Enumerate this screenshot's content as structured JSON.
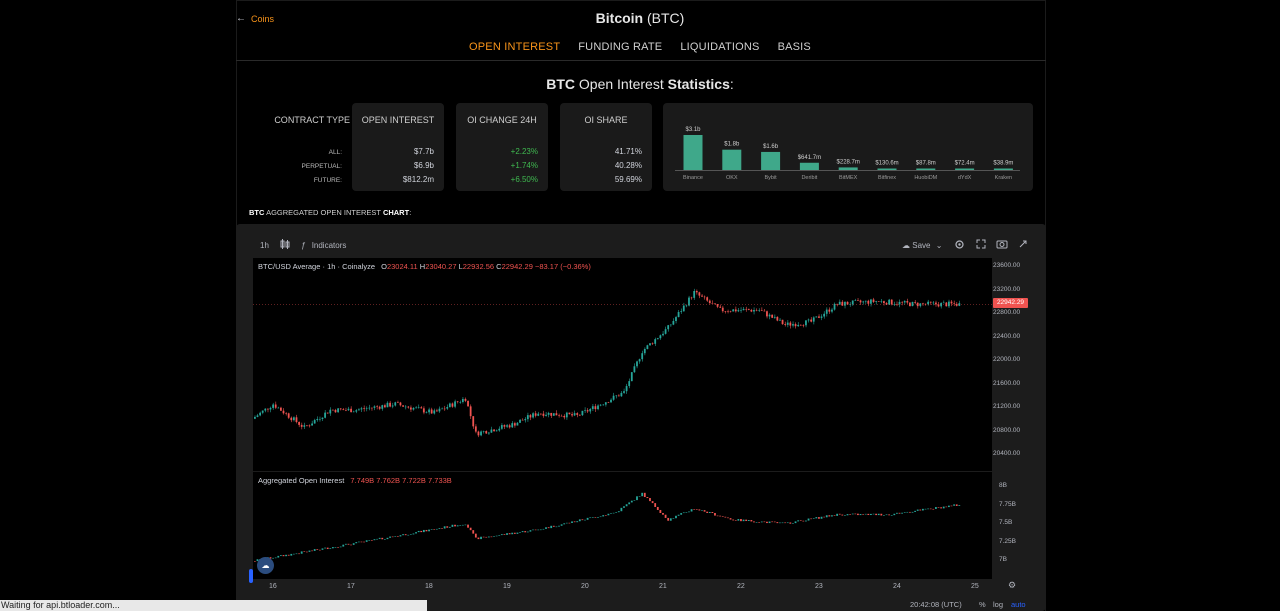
{
  "header": {
    "back_label": "Coins",
    "title_bold": "Bitcoin",
    "title_rest": "(BTC)"
  },
  "tabs": [
    {
      "label": "OPEN INTEREST",
      "active": true
    },
    {
      "label": "FUNDING RATE",
      "active": false
    },
    {
      "label": "LIQUIDATIONS",
      "active": false
    },
    {
      "label": "BASIS",
      "active": false
    }
  ],
  "stats": {
    "title_bold1": "BTC",
    "title_mid": "Open Interest",
    "title_bold2": "Statistics",
    "title_end": ":",
    "contract_type_label": "CONTRACT TYPE",
    "row_labels": [
      "ALL:",
      "PERPETUAL:",
      "FUTURE:"
    ],
    "open_interest": {
      "header": "OPEN INTEREST",
      "values": [
        "$7.7b",
        "$6.9b",
        "$812.2m"
      ]
    },
    "oi_change": {
      "header": "OI CHANGE 24H",
      "values": [
        "+2.23%",
        "+1.74%",
        "+6.50%"
      ]
    },
    "oi_share": {
      "header": "OI SHARE",
      "values": [
        "41.71%",
        "40.28%",
        "59.69%"
      ]
    }
  },
  "exchange_chart": {
    "type": "bar",
    "categories": [
      "Binance",
      "OKX",
      "Bybit",
      "Deribit",
      "BitMEX",
      "Bitfinex",
      "HuobiDM",
      "dYdX",
      "Kraken"
    ],
    "labels": [
      "$3.1b",
      "$1.8b",
      "$1.6b",
      "$641.7m",
      "$228.7m",
      "$130.6m",
      "$87.8m",
      "$72.4m",
      "$38.9m"
    ],
    "values": [
      3100,
      1800,
      1600,
      641.7,
      228.7,
      130.6,
      87.8,
      72.4,
      38.9
    ],
    "color": "#3fa88a"
  },
  "chart_section": {
    "label_bold": "BTC",
    "label_mid": "AGGREGATED OPEN INTEREST",
    "label_bold2": "CHART",
    "label_end": ":"
  },
  "toolbar": {
    "interval": "1h",
    "indicators_label": "Indicators",
    "save_label": "Save"
  },
  "price_legend": {
    "symbol": "BTC/USD Average",
    "interval": "1h",
    "source": "Coinalyze",
    "o": "23024.11",
    "h": "23040.27",
    "l": "22932.56",
    "c": "22942.29",
    "change": "−83.17 (−0.36%)"
  },
  "price_axis": [
    "23600.00",
    "23200.00",
    "22800.00",
    "22400.00",
    "22000.00",
    "21600.00",
    "21200.00",
    "20800.00",
    "20400.00"
  ],
  "current_price": "22942.29",
  "oi_legend": {
    "name": "Aggregated Open Interest",
    "values": [
      "7.749B",
      "7.762B",
      "7.722B",
      "7.733B"
    ]
  },
  "oi_axis": [
    "8B",
    "7.75B",
    "7.5B",
    "7.25B",
    "7B"
  ],
  "time_axis": [
    "16",
    "17",
    "18",
    "19",
    "20",
    "21",
    "22",
    "23",
    "24",
    "25"
  ],
  "bottom": {
    "clock": "20:42:08 (UTC)",
    "percent": "%",
    "log": "log",
    "auto": "auto"
  },
  "status_text": "Waiting for api.btloader.com...",
  "colors": {
    "accent": "#f7931a",
    "up": "#26a69a",
    "down": "#ef5350",
    "positive": "#3fb950"
  }
}
